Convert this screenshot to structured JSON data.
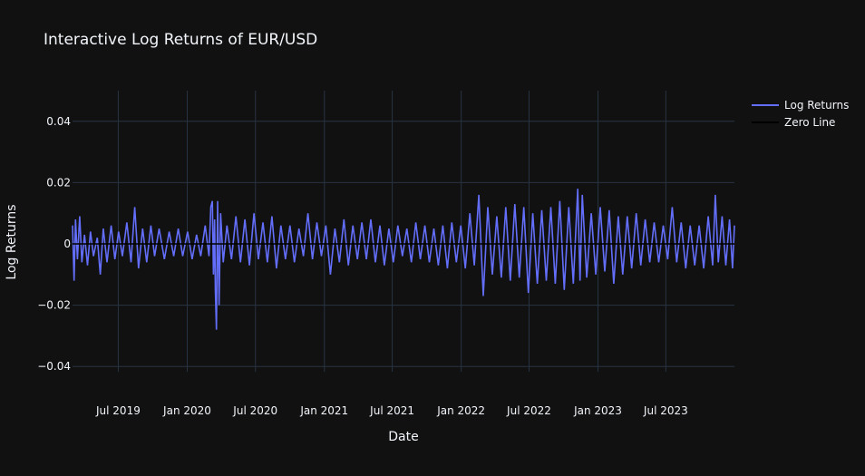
{
  "chart_data": {
    "type": "line",
    "title": "Interactive Log Returns of EUR/USD",
    "xlabel": "Date",
    "ylabel": "Log Returns",
    "x_range": [
      "2019-03-01",
      "2023-12-31"
    ],
    "x_tick_labels": [
      {
        "date": "2019-07-01",
        "label": "Jul 2019"
      },
      {
        "date": "2020-01-01",
        "label": "Jan 2020"
      },
      {
        "date": "2020-07-01",
        "label": "Jul 2020"
      },
      {
        "date": "2021-01-01",
        "label": "Jan 2021"
      },
      {
        "date": "2021-07-01",
        "label": "Jul 2021"
      },
      {
        "date": "2022-01-01",
        "label": "Jan 2022"
      },
      {
        "date": "2022-07-01",
        "label": "Jul 2022"
      },
      {
        "date": "2023-01-01",
        "label": "Jan 2023"
      },
      {
        "date": "2023-07-01",
        "label": "Jul 2023"
      }
    ],
    "ylim": [
      -0.05,
      0.05
    ],
    "y_ticks": [
      {
        "value": 0.04,
        "label": "0.04"
      },
      {
        "value": 0.02,
        "label": "0.02"
      },
      {
        "value": 0,
        "label": "0"
      },
      {
        "value": -0.02,
        "label": "−0.02"
      },
      {
        "value": -0.04,
        "label": "−0.04"
      }
    ],
    "grid": true,
    "legend_position": "top-right",
    "series": [
      {
        "name": "Log Returns",
        "color": "#636efa",
        "points": [
          [
            "2019-03-01",
            0.006
          ],
          [
            "2019-03-05",
            -0.012
          ],
          [
            "2019-03-09",
            0.008
          ],
          [
            "2019-03-14",
            -0.005
          ],
          [
            "2019-03-20",
            0.009
          ],
          [
            "2019-03-26",
            -0.006
          ],
          [
            "2019-04-02",
            0.003
          ],
          [
            "2019-04-10",
            -0.007
          ],
          [
            "2019-04-18",
            0.004
          ],
          [
            "2019-04-26",
            -0.004
          ],
          [
            "2019-05-06",
            0.002
          ],
          [
            "2019-05-14",
            -0.01
          ],
          [
            "2019-05-22",
            0.005
          ],
          [
            "2019-06-01",
            -0.006
          ],
          [
            "2019-06-12",
            0.006
          ],
          [
            "2019-06-22",
            -0.005
          ],
          [
            "2019-07-02",
            0.004
          ],
          [
            "2019-07-12",
            -0.004
          ],
          [
            "2019-07-24",
            0.007
          ],
          [
            "2019-08-04",
            -0.006
          ],
          [
            "2019-08-14",
            0.012
          ],
          [
            "2019-08-24",
            -0.008
          ],
          [
            "2019-09-04",
            0.005
          ],
          [
            "2019-09-15",
            -0.006
          ],
          [
            "2019-09-26",
            0.006
          ],
          [
            "2019-10-06",
            -0.004
          ],
          [
            "2019-10-18",
            0.005
          ],
          [
            "2019-11-01",
            -0.005
          ],
          [
            "2019-11-14",
            0.004
          ],
          [
            "2019-11-26",
            -0.004
          ],
          [
            "2019-12-08",
            0.005
          ],
          [
            "2019-12-20",
            -0.004
          ],
          [
            "2020-01-02",
            0.004
          ],
          [
            "2020-01-14",
            -0.005
          ],
          [
            "2020-01-26",
            0.003
          ],
          [
            "2020-02-06",
            -0.004
          ],
          [
            "2020-02-18",
            0.006
          ],
          [
            "2020-02-28",
            -0.004
          ],
          [
            "2020-03-04",
            0.012
          ],
          [
            "2020-03-08",
            0.014
          ],
          [
            "2020-03-11",
            -0.01
          ],
          [
            "2020-03-14",
            0.008
          ],
          [
            "2020-03-16",
            -0.015
          ],
          [
            "2020-03-19",
            -0.028
          ],
          [
            "2020-03-22",
            0.014
          ],
          [
            "2020-03-26",
            -0.02
          ],
          [
            "2020-03-30",
            0.01
          ],
          [
            "2020-04-06",
            -0.006
          ],
          [
            "2020-04-16",
            0.006
          ],
          [
            "2020-04-28",
            -0.005
          ],
          [
            "2020-05-10",
            0.009
          ],
          [
            "2020-05-22",
            -0.006
          ],
          [
            "2020-06-03",
            0.008
          ],
          [
            "2020-06-15",
            -0.007
          ],
          [
            "2020-06-27",
            0.01
          ],
          [
            "2020-07-09",
            -0.005
          ],
          [
            "2020-07-21",
            0.007
          ],
          [
            "2020-08-02",
            -0.006
          ],
          [
            "2020-08-14",
            0.009
          ],
          [
            "2020-08-26",
            -0.008
          ],
          [
            "2020-09-07",
            0.006
          ],
          [
            "2020-09-19",
            -0.005
          ],
          [
            "2020-10-01",
            0.006
          ],
          [
            "2020-10-13",
            -0.006
          ],
          [
            "2020-10-25",
            0.005
          ],
          [
            "2020-11-06",
            -0.004
          ],
          [
            "2020-11-18",
            0.01
          ],
          [
            "2020-11-30",
            -0.005
          ],
          [
            "2020-12-12",
            0.007
          ],
          [
            "2020-12-24",
            -0.004
          ],
          [
            "2021-01-05",
            0.006
          ],
          [
            "2021-01-17",
            -0.01
          ],
          [
            "2021-01-29",
            0.005
          ],
          [
            "2021-02-10",
            -0.006
          ],
          [
            "2021-02-22",
            0.008
          ],
          [
            "2021-03-06",
            -0.007
          ],
          [
            "2021-03-18",
            0.006
          ],
          [
            "2021-03-30",
            -0.005
          ],
          [
            "2021-04-11",
            0.007
          ],
          [
            "2021-04-23",
            -0.005
          ],
          [
            "2021-05-05",
            0.008
          ],
          [
            "2021-05-17",
            -0.006
          ],
          [
            "2021-05-29",
            0.006
          ],
          [
            "2021-06-10",
            -0.007
          ],
          [
            "2021-06-22",
            0.005
          ],
          [
            "2021-07-04",
            -0.006
          ],
          [
            "2021-07-16",
            0.006
          ],
          [
            "2021-07-28",
            -0.004
          ],
          [
            "2021-08-09",
            0.005
          ],
          [
            "2021-08-21",
            -0.006
          ],
          [
            "2021-09-02",
            0.007
          ],
          [
            "2021-09-14",
            -0.005
          ],
          [
            "2021-09-26",
            0.006
          ],
          [
            "2021-10-08",
            -0.006
          ],
          [
            "2021-10-20",
            0.005
          ],
          [
            "2021-11-01",
            -0.007
          ],
          [
            "2021-11-13",
            0.006
          ],
          [
            "2021-11-25",
            -0.008
          ],
          [
            "2021-12-07",
            0.007
          ],
          [
            "2021-12-19",
            -0.006
          ],
          [
            "2021-12-31",
            0.006
          ],
          [
            "2022-01-12",
            -0.008
          ],
          [
            "2022-01-24",
            0.01
          ],
          [
            "2022-02-05",
            -0.007
          ],
          [
            "2022-02-17",
            0.016
          ],
          [
            "2022-03-01",
            -0.017
          ],
          [
            "2022-03-13",
            0.012
          ],
          [
            "2022-03-25",
            -0.01
          ],
          [
            "2022-04-06",
            0.009
          ],
          [
            "2022-04-18",
            -0.011
          ],
          [
            "2022-04-30",
            0.012
          ],
          [
            "2022-05-12",
            -0.012
          ],
          [
            "2022-05-24",
            0.013
          ],
          [
            "2022-06-05",
            -0.011
          ],
          [
            "2022-06-17",
            0.012
          ],
          [
            "2022-06-29",
            -0.016
          ],
          [
            "2022-07-11",
            0.01
          ],
          [
            "2022-07-23",
            -0.013
          ],
          [
            "2022-08-04",
            0.011
          ],
          [
            "2022-08-16",
            -0.012
          ],
          [
            "2022-08-28",
            0.012
          ],
          [
            "2022-09-09",
            -0.013
          ],
          [
            "2022-09-21",
            0.014
          ],
          [
            "2022-10-03",
            -0.015
          ],
          [
            "2022-10-15",
            0.012
          ],
          [
            "2022-10-27",
            -0.013
          ],
          [
            "2022-11-08",
            0.018
          ],
          [
            "2022-11-14",
            -0.012
          ],
          [
            "2022-11-20",
            0.016
          ],
          [
            "2022-12-02",
            -0.011
          ],
          [
            "2022-12-14",
            0.01
          ],
          [
            "2022-12-26",
            -0.01
          ],
          [
            "2023-01-07",
            0.012
          ],
          [
            "2023-01-19",
            -0.009
          ],
          [
            "2023-01-31",
            0.011
          ],
          [
            "2023-02-12",
            -0.013
          ],
          [
            "2023-02-24",
            0.009
          ],
          [
            "2023-03-08",
            -0.01
          ],
          [
            "2023-03-20",
            0.009
          ],
          [
            "2023-04-01",
            -0.008
          ],
          [
            "2023-04-13",
            0.01
          ],
          [
            "2023-04-25",
            -0.007
          ],
          [
            "2023-05-07",
            0.008
          ],
          [
            "2023-05-19",
            -0.006
          ],
          [
            "2023-05-31",
            0.007
          ],
          [
            "2023-06-12",
            -0.006
          ],
          [
            "2023-06-24",
            0.006
          ],
          [
            "2023-07-06",
            -0.005
          ],
          [
            "2023-07-18",
            0.012
          ],
          [
            "2023-07-30",
            -0.006
          ],
          [
            "2023-08-11",
            0.007
          ],
          [
            "2023-08-23",
            -0.008
          ],
          [
            "2023-09-04",
            0.006
          ],
          [
            "2023-09-16",
            -0.007
          ],
          [
            "2023-09-28",
            0.006
          ],
          [
            "2023-10-10",
            -0.008
          ],
          [
            "2023-10-22",
            0.009
          ],
          [
            "2023-11-03",
            -0.007
          ],
          [
            "2023-11-10",
            0.016
          ],
          [
            "2023-11-18",
            -0.006
          ],
          [
            "2023-11-28",
            0.009
          ],
          [
            "2023-12-08",
            -0.007
          ],
          [
            "2023-12-18",
            0.008
          ],
          [
            "2023-12-26",
            -0.008
          ],
          [
            "2023-12-31",
            0.006
          ]
        ]
      },
      {
        "name": "Zero Line",
        "color": "#000000",
        "points": [
          [
            "2019-03-01",
            0
          ],
          [
            "2023-12-31",
            0
          ]
        ]
      }
    ]
  }
}
